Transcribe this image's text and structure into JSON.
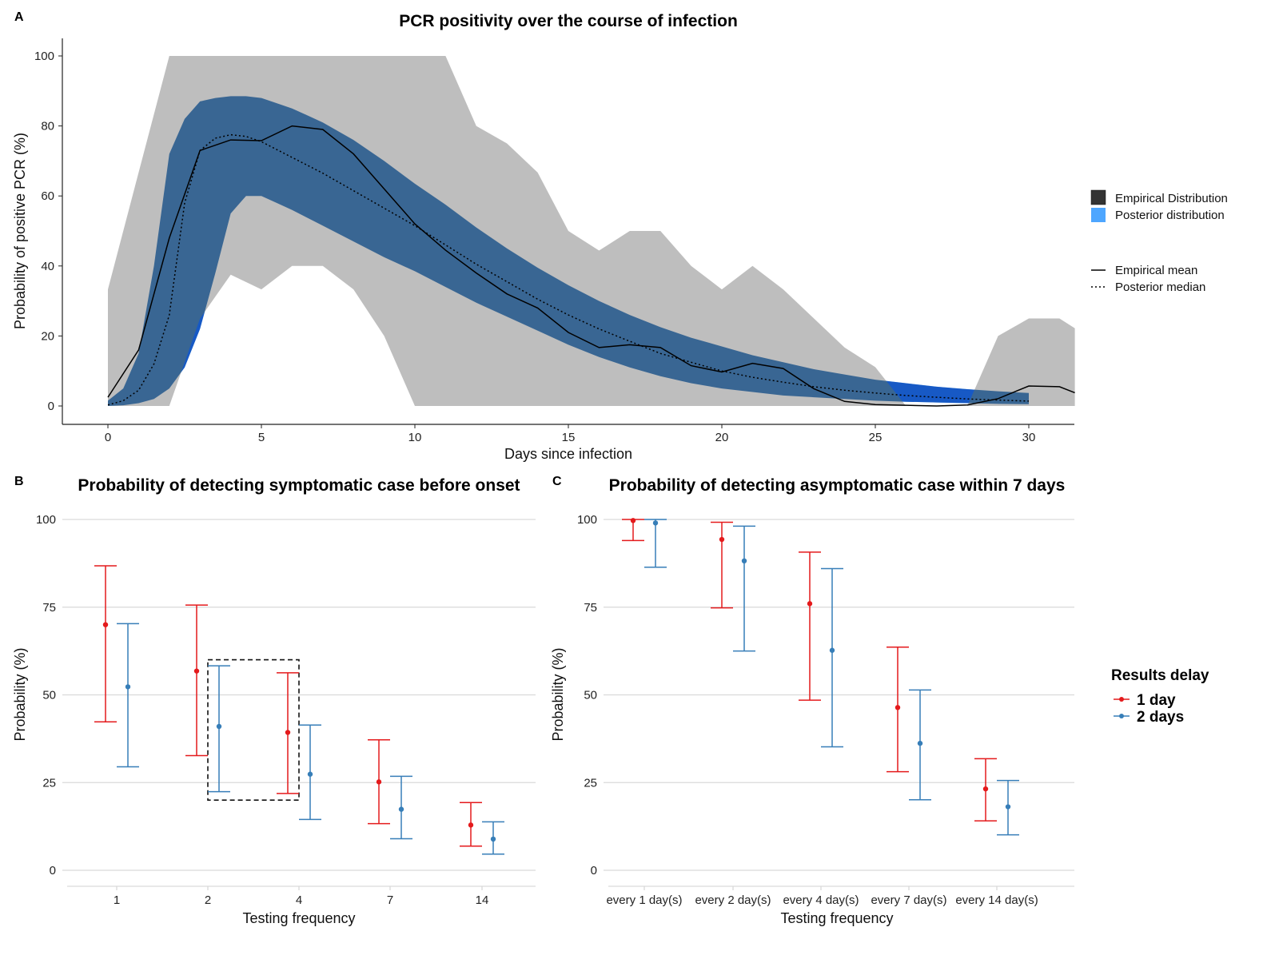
{
  "chart_data": [
    {
      "panel": "A",
      "type": "area",
      "title": "PCR positivity over the course of infection",
      "xlabel": "Days since infection",
      "ylabel": "Probability of positive PCR (%)",
      "xlim": [
        -1.5,
        31.5
      ],
      "ylim": [
        -5,
        105
      ],
      "xticks": [
        0,
        5,
        10,
        15,
        20,
        25,
        30
      ],
      "yticks": [
        0,
        20,
        40,
        60,
        80,
        100
      ],
      "grid": false,
      "legend_position": "right",
      "legend": {
        "fills": [
          {
            "label": "Empirical Distribution",
            "color": "#333333"
          },
          {
            "label": "Posterior distribution",
            "color": "#4DA6FF"
          }
        ],
        "lines": [
          {
            "label": "Empirical mean",
            "style": "solid"
          },
          {
            "label": "Posterior median",
            "style": "dotted"
          }
        ]
      },
      "colors": {
        "empirical_band": "#BEBEBE",
        "posterior_band": "#3D7FC0",
        "posterior_band_light": "#4DA6FF"
      },
      "empirical_band": {
        "x": [
          0,
          1,
          2,
          3,
          4,
          5,
          6,
          7,
          8,
          9,
          10,
          11,
          12,
          13,
          14,
          15,
          16,
          17,
          18,
          19,
          20,
          21,
          22,
          23,
          24,
          25,
          26,
          27,
          28,
          29,
          30,
          31,
          31.5
        ],
        "lower": [
          0,
          0,
          0,
          25,
          37.5,
          33.3,
          40,
          40,
          33.3,
          20,
          0,
          0,
          0,
          0,
          0,
          0,
          0,
          0,
          0,
          0,
          0,
          0,
          0,
          0,
          0,
          0,
          0,
          0,
          0,
          0,
          0,
          0,
          0
        ],
        "upper": [
          33.3,
          66.7,
          100,
          100,
          100,
          100,
          100,
          100,
          100,
          100,
          100,
          100,
          80,
          75,
          66.7,
          50,
          44.4,
          50,
          50,
          40,
          33.3,
          40,
          33.3,
          25,
          16.7,
          11.1,
          0,
          0,
          0,
          20,
          25,
          25,
          22.2
        ]
      },
      "posterior_band": {
        "x": [
          0,
          0.5,
          1,
          1.5,
          2,
          2.5,
          3,
          3.5,
          4,
          4.5,
          5,
          6,
          7,
          8,
          9,
          10,
          11,
          12,
          13,
          14,
          15,
          16,
          17,
          18,
          19,
          20,
          21,
          22,
          23,
          24,
          25,
          26,
          27,
          28,
          29,
          30
        ],
        "lower": [
          0,
          0.2,
          0.8,
          2,
          5,
          11,
          22,
          38,
          55,
          60,
          60,
          56,
          51.5,
          47,
          42.5,
          38.5,
          34,
          29.5,
          25.5,
          21.5,
          17.5,
          14,
          11,
          8.5,
          6.5,
          5,
          4,
          3,
          2.5,
          2,
          1.5,
          1.2,
          1,
          0.8,
          0.6,
          0.5
        ],
        "upper": [
          1.5,
          5,
          15,
          40,
          72,
          82,
          87,
          88,
          88.5,
          88.5,
          88,
          85,
          81,
          76,
          70,
          63.5,
          57.5,
          51,
          45,
          39.5,
          34.5,
          30,
          26,
          22.5,
          19.5,
          17,
          14.5,
          12.5,
          10.5,
          9,
          7.5,
          6.5,
          5.5,
          4.8,
          4.2,
          3.7
        ]
      },
      "series": [
        {
          "name": "Empirical mean",
          "style": "solid",
          "x": [
            0,
            1,
            2,
            3,
            4,
            5,
            6,
            7,
            8,
            9,
            10,
            11,
            12,
            13,
            14,
            15,
            16,
            17,
            18,
            19,
            20,
            21,
            22,
            23,
            24,
            25,
            26,
            27,
            28,
            29,
            30,
            31,
            31.5
          ],
          "y": [
            2.5,
            16,
            48,
            73,
            76,
            75.8,
            80,
            79,
            72,
            62,
            52,
            44.5,
            38,
            32,
            28,
            21,
            16.7,
            17.5,
            16.7,
            11.5,
            9.7,
            12.2,
            10.7,
            4.9,
            1.3,
            0.4,
            0.2,
            0,
            0.3,
            2.1,
            5.7,
            5.5,
            3.8
          ]
        },
        {
          "name": "Posterior median",
          "style": "dotted",
          "x": [
            0,
            0.5,
            1,
            1.5,
            2,
            2.5,
            3,
            3.5,
            4,
            4.5,
            5,
            6,
            7,
            8,
            9,
            10,
            11,
            12,
            13,
            14,
            15,
            16,
            17,
            18,
            19,
            20,
            21,
            22,
            23,
            24,
            25,
            26,
            27,
            28,
            29,
            30
          ],
          "y": [
            0.3,
            1.5,
            4.5,
            12,
            26,
            58,
            73,
            76.5,
            77.5,
            77,
            75.5,
            71,
            66.5,
            61.5,
            56.5,
            51.5,
            46,
            40.5,
            35.5,
            30.5,
            26,
            22,
            18.5,
            15,
            12.5,
            10,
            8.2,
            6.8,
            5.5,
            4.5,
            3.7,
            3,
            2.5,
            2,
            1.7,
            1.4
          ]
        }
      ]
    },
    {
      "panel": "B",
      "type": "scatter",
      "subtype": "errorbar",
      "title": "Probability of detecting symptomatic case before onset",
      "xlabel": "Testing frequency",
      "ylabel": "Probability (%)",
      "categories": [
        "1",
        "2",
        "4",
        "7",
        "14"
      ],
      "ylim": [
        -5,
        103
      ],
      "yticks": [
        0,
        25,
        50,
        75,
        100
      ],
      "grid": true,
      "series": [
        {
          "name": "1 day",
          "color": "#E41A1C",
          "values": [
            70,
            56.8,
            39.3,
            25.2,
            12.9
          ],
          "lower": [
            42.3,
            32.7,
            21.9,
            13.3,
            6.9
          ],
          "upper": [
            86.8,
            75.6,
            56.3,
            37.2,
            19.3
          ]
        },
        {
          "name": "2 days",
          "color": "#377EB8",
          "values": [
            52.3,
            41,
            27.4,
            17.4,
            8.9
          ],
          "lower": [
            29.5,
            22.4,
            14.5,
            9,
            4.6
          ],
          "upper": [
            70.3,
            58.3,
            41.4,
            26.8,
            13.8
          ]
        }
      ],
      "annotations": [
        {
          "type": "dashed-rectangle",
          "from_category": "2",
          "to_category": "4",
          "y_range": [
            20,
            60
          ]
        }
      ]
    },
    {
      "panel": "C",
      "type": "scatter",
      "subtype": "errorbar",
      "title": "Probability of detecting asymptomatic case within 7 days",
      "xlabel": "Testing frequency",
      "ylabel": "Probability (%)",
      "categories": [
        "every 1 day(s)",
        "every 2 day(s)",
        "every 4 day(s)",
        "every 7 day(s)",
        "every 14 day(s)"
      ],
      "ylim": [
        -5,
        103
      ],
      "yticks": [
        0,
        25,
        50,
        75,
        100
      ],
      "grid": true,
      "legend_position": "right",
      "legend_title": "Results delay",
      "series": [
        {
          "name": "1 day",
          "color": "#E41A1C",
          "values": [
            99.7,
            94.3,
            76,
            46.4,
            23.2
          ],
          "lower": [
            94,
            74.8,
            48.5,
            28.1,
            14.1
          ],
          "upper": [
            100,
            99.2,
            90.7,
            63.6,
            31.8
          ]
        },
        {
          "name": "2 days",
          "color": "#377EB8",
          "values": [
            99,
            88.2,
            62.7,
            36.2,
            18.1
          ],
          "lower": [
            86.4,
            62.5,
            35.2,
            20.1,
            10.1
          ],
          "upper": [
            100,
            98.1,
            86,
            51.4,
            25.6
          ]
        }
      ]
    }
  ],
  "labels": {
    "panel_a": "A",
    "panel_b": "B",
    "panel_c": "C"
  }
}
